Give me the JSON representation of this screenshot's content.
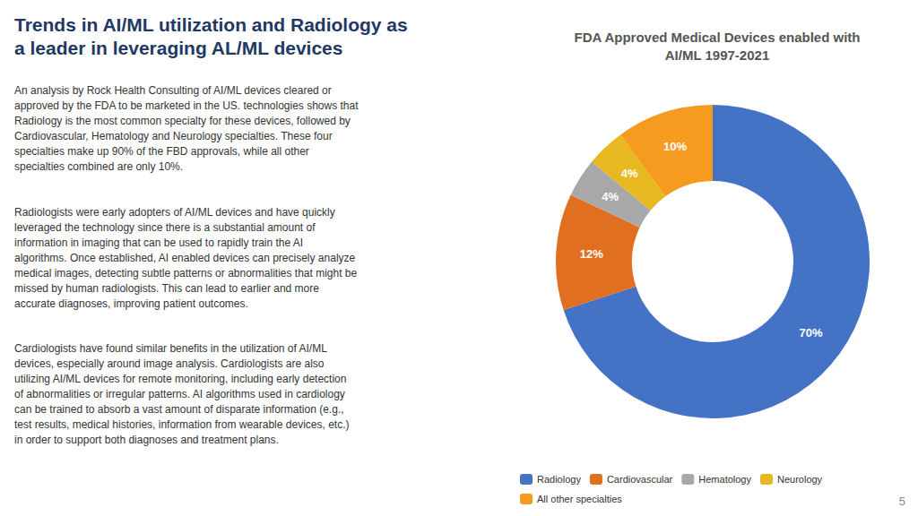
{
  "chart_data": {
    "type": "pie",
    "title": "FDA Approved Medical Devices enabled with\nAI/ML 1997-2021",
    "categories": [
      "Radiology",
      "Cardiovascular",
      "Hematology",
      "Neurology",
      "All other specialties"
    ],
    "values": [
      70,
      12,
      4,
      4,
      10
    ],
    "value_labels": [
      "70%",
      "12%",
      "4%",
      "4%",
      "10%"
    ],
    "colors": [
      "#4472C4",
      "#E07020",
      "#A8A8A8",
      "#E8B820",
      "#F59B20"
    ],
    "data_labels": true,
    "legend": "bottom",
    "annotations": [
      "Trends in AI/ML utilization and Radiology as\na leader in leveraging AL/ML devices",
      "An analysis by Rock Health Consulting of AI/ML devices cleared or\napproved by the FDA to be marketed in the US. technologies shows that\nRadiology is the most common specialty for these devices, followed by\nCardiovascular, Hematology and Neurology specialties. These four\nspecialties make up 90% of the FBD approvals, while all other\nspecialties combined are only 10%.",
      "Radiologists were early adopters of AI/ML devices and have quickly\nleveraged the technology since there is a substantial amount of\ninformation in imaging that can be used to rapidly train the AI\nalgorithms. Once established, AI enabled devices can precisely analyze\nmedical images, detecting subtle patterns or abnormalities that might be\nmissed by human radiologists. This can lead to earlier and more\naccurate diagnoses, improving patient outcomes.",
      "Cardiologists have found similar benefits in the utilization of AI/ML\ndevices, especially around image analysis. Cardiologists are also\nutilizing AI/ML devices for remote monitoring, including early detection\nof abnormalities or irregular patterns. AI algorithms used in cardiology\ncan be trained to absorb a vast amount of disparate information (e.g.,\ntest results, medical histories, information from wearable devices, etc.)\nin order to support both diagnoses and treatment plans.",
      "5"
    ]
  }
}
